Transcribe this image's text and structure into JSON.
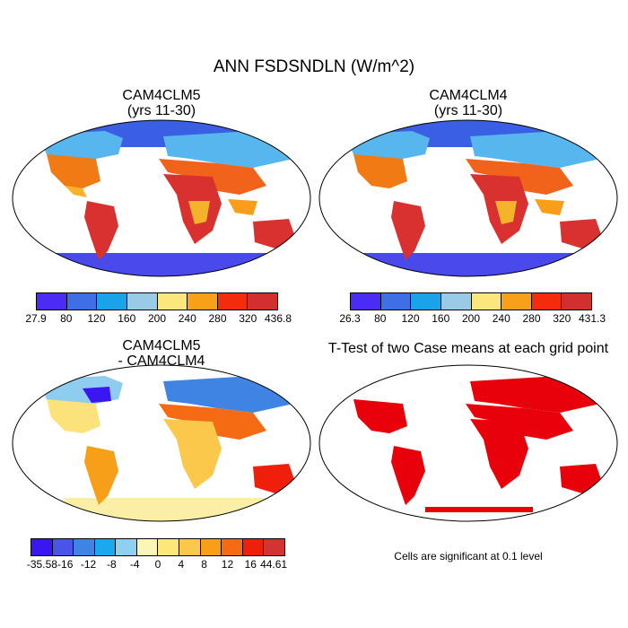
{
  "title": "ANN FSDSNDLN (W/m^2)",
  "panels": [
    {
      "title_line1": "CAM4CLM5",
      "title_line2": "(yrs 11-30)"
    },
    {
      "title_line1": "CAM4CLM4",
      "title_line2": "(yrs 11-30)"
    },
    {
      "title_line1": "CAM4CLM5",
      "title_line2": "- CAM4CLM4"
    },
    {
      "title_line1": "T-Test of two Case means at each grid point",
      "title_line2": ""
    }
  ],
  "colorbars": {
    "panel1": {
      "colors": [
        "#4a2cf4",
        "#3f6fe6",
        "#1aa3e8",
        "#99cbe6",
        "#fbe77e",
        "#f8a019",
        "#f42c0d",
        "#d22f2f"
      ],
      "labels": [
        "27.9",
        "80",
        "120",
        "160",
        "200",
        "240",
        "280",
        "320",
        "436.8"
      ]
    },
    "panel2": {
      "colors": [
        "#4a2cf4",
        "#3f6fe6",
        "#1aa3e8",
        "#99cbe6",
        "#fbe77e",
        "#f8a019",
        "#f42c0d",
        "#d22f2f"
      ],
      "labels": [
        "26.3",
        "80",
        "120",
        "160",
        "200",
        "240",
        "280",
        "320",
        "431.3"
      ]
    },
    "panel3": {
      "colors": [
        "#3a16f2",
        "#4a55e8",
        "#3f84e3",
        "#1ba8ec",
        "#8fd0f0",
        "#fbf6b8",
        "#fce77a",
        "#fbc84c",
        "#f79f18",
        "#f56b14",
        "#f01f0c",
        "#d23434"
      ],
      "labels": [
        "-35.58",
        "-16",
        "-12",
        "-8",
        "-4",
        "0",
        "4",
        "8",
        "12",
        "16",
        "44.61"
      ]
    }
  },
  "note": "Cells are significant at 0.1 level",
  "map_colors": {
    "ocean": "#ffffff",
    "significant": "#e8000b",
    "coast": "#000000"
  }
}
